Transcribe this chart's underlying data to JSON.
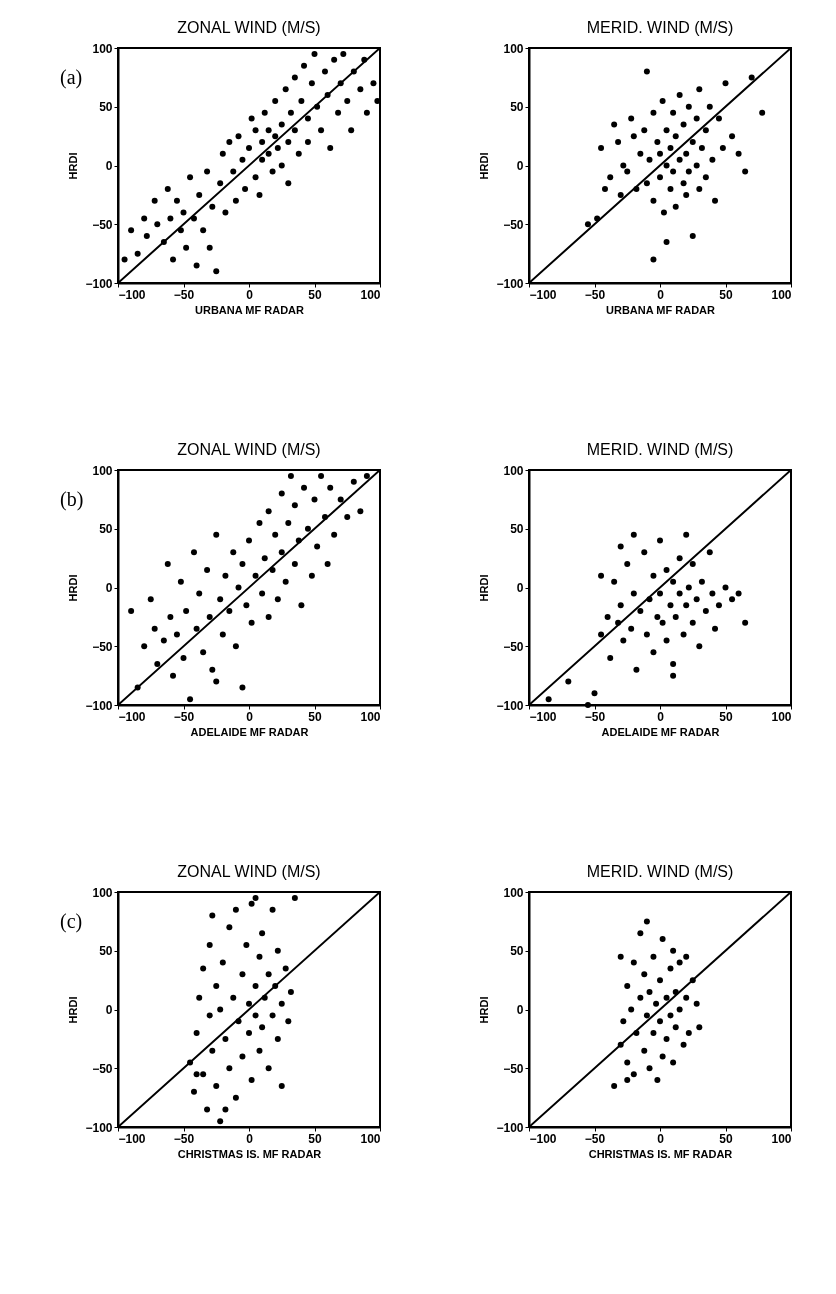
{
  "chart_data": [
    {
      "type": "scatter",
      "title": "ZONAL WIND (M/S)",
      "xlabel": "URBANA MF RADAR",
      "ylabel": "HRDI",
      "annotations": [
        "(a)"
      ],
      "xlim": [
        -100,
        100
      ],
      "ylim": [
        -100,
        100
      ],
      "xticks": [
        -100,
        -50,
        0,
        50,
        100
      ],
      "yticks": [
        -100,
        -50,
        0,
        50,
        100
      ],
      "grid": false,
      "marker": "circle",
      "series": [
        {
          "type": "scatter",
          "color": "#000000",
          "x": [
            -95,
            -90,
            -85,
            -80,
            -78,
            -72,
            -70,
            -65,
            -62,
            -60,
            -58,
            -55,
            -52,
            -50,
            -48,
            -45,
            -42,
            -40,
            -38,
            -35,
            -32,
            -30,
            -28,
            -25,
            -22,
            -20,
            -18,
            -15,
            -12,
            -10,
            -8,
            -5,
            -3,
            0,
            2,
            5,
            5,
            8,
            10,
            10,
            12,
            15,
            15,
            18,
            20,
            20,
            22,
            25,
            25,
            28,
            30,
            30,
            32,
            35,
            35,
            38,
            40,
            42,
            45,
            45,
            48,
            50,
            52,
            55,
            58,
            60,
            62,
            65,
            68,
            70,
            72,
            75,
            78,
            80,
            85,
            88,
            90,
            95,
            98
          ],
          "values": [
            -80,
            -55,
            -75,
            -45,
            -60,
            -30,
            -50,
            -65,
            -20,
            -45,
            -80,
            -30,
            -55,
            -40,
            -70,
            -10,
            -45,
            -85,
            -25,
            -55,
            -5,
            -70,
            -35,
            -90,
            -15,
            10,
            -40,
            20,
            -5,
            -30,
            25,
            5,
            -20,
            15,
            40,
            -10,
            30,
            -25,
            20,
            5,
            45,
            10,
            30,
            -5,
            25,
            55,
            15,
            35,
            0,
            65,
            20,
            -15,
            45,
            75,
            30,
            10,
            55,
            85,
            40,
            20,
            70,
            95,
            50,
            30,
            80,
            60,
            15,
            90,
            45,
            70,
            95,
            55,
            30,
            80,
            65,
            90,
            45,
            70,
            55
          ]
        },
        {
          "type": "line",
          "color": "#000000",
          "marker": "none",
          "x": [
            -100,
            100
          ],
          "values": [
            -100,
            100
          ]
        }
      ]
    },
    {
      "type": "scatter",
      "title": "MERID. WIND (M/S)",
      "xlabel": "URBANA MF RADAR",
      "ylabel": "HRDI",
      "xlim": [
        -100,
        100
      ],
      "ylim": [
        -100,
        100
      ],
      "xticks": [
        -100,
        -50,
        0,
        50,
        100
      ],
      "yticks": [
        -100,
        -50,
        0,
        50,
        100
      ],
      "grid": false,
      "marker": "circle",
      "series": [
        {
          "type": "scatter",
          "color": "#000000",
          "x": [
            -55,
            -48,
            -45,
            -42,
            -38,
            -35,
            -32,
            -30,
            -28,
            -25,
            -22,
            -20,
            -18,
            -15,
            -12,
            -10,
            -8,
            -5,
            -5,
            -2,
            0,
            0,
            2,
            3,
            5,
            5,
            8,
            8,
            10,
            10,
            12,
            12,
            15,
            15,
            18,
            18,
            20,
            20,
            22,
            22,
            25,
            25,
            28,
            28,
            30,
            30,
            32,
            35,
            35,
            38,
            40,
            42,
            45,
            48,
            50,
            55,
            60,
            65,
            70,
            78,
            -5,
            -10,
            5
          ],
          "values": [
            -50,
            -45,
            15,
            -20,
            -10,
            35,
            20,
            -25,
            0,
            -5,
            40,
            25,
            -20,
            10,
            30,
            -15,
            5,
            45,
            -30,
            20,
            -10,
            10,
            55,
            -40,
            30,
            0,
            -20,
            15,
            45,
            -5,
            25,
            -35,
            5,
            60,
            -15,
            35,
            10,
            -25,
            50,
            -5,
            20,
            -60,
            0,
            40,
            -20,
            65,
            15,
            30,
            -10,
            50,
            5,
            -30,
            40,
            15,
            70,
            25,
            10,
            -5,
            75,
            45,
            -80,
            80,
            -65
          ]
        },
        {
          "type": "line",
          "color": "#000000",
          "marker": "none",
          "x": [
            -100,
            100
          ],
          "values": [
            -100,
            100
          ]
        }
      ]
    },
    {
      "type": "scatter",
      "title": "ZONAL WIND (M/S)",
      "xlabel": "ADELAIDE MF RADAR",
      "ylabel": "HRDI",
      "annotations": [
        "(b)"
      ],
      "xlim": [
        -100,
        100
      ],
      "ylim": [
        -100,
        100
      ],
      "xticks": [
        -100,
        -50,
        0,
        50,
        100
      ],
      "yticks": [
        -100,
        -50,
        0,
        50,
        100
      ],
      "grid": false,
      "marker": "circle",
      "series": [
        {
          "type": "scatter",
          "color": "#000000",
          "x": [
            -90,
            -85,
            -80,
            -75,
            -72,
            -70,
            -65,
            -62,
            -60,
            -58,
            -55,
            -52,
            -50,
            -48,
            -45,
            -42,
            -40,
            -38,
            -35,
            -32,
            -30,
            -28,
            -25,
            -22,
            -20,
            -18,
            -15,
            -12,
            -10,
            -8,
            -5,
            -2,
            0,
            2,
            5,
            8,
            10,
            12,
            15,
            15,
            18,
            20,
            22,
            25,
            25,
            28,
            30,
            32,
            35,
            35,
            38,
            40,
            42,
            45,
            48,
            50,
            52,
            55,
            58,
            60,
            62,
            65,
            70,
            75,
            80,
            85,
            90,
            -5,
            -25
          ],
          "values": [
            -20,
            -85,
            -50,
            -10,
            -35,
            -65,
            -45,
            20,
            -25,
            -75,
            -40,
            5,
            -60,
            -20,
            -95,
            30,
            -35,
            -5,
            -55,
            15,
            -25,
            -70,
            45,
            -10,
            -40,
            10,
            -20,
            30,
            -50,
            0,
            20,
            -15,
            40,
            -30,
            10,
            55,
            -5,
            25,
            -25,
            65,
            15,
            45,
            -10,
            80,
            30,
            5,
            55,
            95,
            20,
            70,
            40,
            -15,
            85,
            50,
            10,
            75,
            35,
            95,
            60,
            20,
            85,
            45,
            75,
            60,
            90,
            65,
            95,
            -85,
            -80
          ]
        },
        {
          "type": "line",
          "color": "#000000",
          "marker": "none",
          "x": [
            -100,
            100
          ],
          "values": [
            -100,
            100
          ]
        }
      ]
    },
    {
      "type": "scatter",
      "title": "MERID. WIND (M/S)",
      "xlabel": "ADELAIDE MF RADAR",
      "ylabel": "HRDI",
      "xlim": [
        -100,
        100
      ],
      "ylim": [
        -100,
        100
      ],
      "xticks": [
        -100,
        -50,
        0,
        50,
        100
      ],
      "yticks": [
        -100,
        -50,
        0,
        50,
        100
      ],
      "grid": false,
      "marker": "circle",
      "series": [
        {
          "type": "scatter",
          "color": "#000000",
          "x": [
            -85,
            -70,
            -55,
            -50,
            -45,
            -40,
            -38,
            -35,
            -32,
            -30,
            -28,
            -25,
            -22,
            -20,
            -18,
            -15,
            -12,
            -10,
            -8,
            -5,
            -5,
            -2,
            0,
            0,
            2,
            5,
            5,
            8,
            10,
            10,
            12,
            15,
            15,
            18,
            20,
            20,
            22,
            25,
            25,
            28,
            30,
            32,
            35,
            38,
            40,
            42,
            45,
            50,
            55,
            60,
            65,
            -30,
            -20,
            -45,
            10
          ],
          "values": [
            -95,
            -80,
            -100,
            -90,
            -40,
            -25,
            -60,
            5,
            -30,
            -15,
            -45,
            20,
            -35,
            -5,
            -70,
            -20,
            30,
            -40,
            -10,
            10,
            -55,
            -25,
            -5,
            40,
            -30,
            15,
            -45,
            -15,
            5,
            -65,
            -25,
            25,
            -5,
            -40,
            -15,
            45,
            0,
            -30,
            20,
            -10,
            -50,
            5,
            -20,
            30,
            -5,
            -35,
            -15,
            0,
            -10,
            -5,
            -30,
            35,
            45,
            10,
            -75
          ]
        },
        {
          "type": "line",
          "color": "#000000",
          "marker": "none",
          "x": [
            -100,
            100
          ],
          "values": [
            -100,
            100
          ]
        }
      ]
    },
    {
      "type": "scatter",
      "title": "ZONAL WIND (M/S)",
      "xlabel": "CHRISTMAS IS. MF RADAR",
      "ylabel": "HRDI",
      "annotations": [
        "(c)"
      ],
      "xlim": [
        -100,
        100
      ],
      "ylim": [
        -100,
        100
      ],
      "xticks": [
        -100,
        -50,
        0,
        50,
        100
      ],
      "yticks": [
        -100,
        -50,
        0,
        50,
        100
      ],
      "grid": false,
      "marker": "circle",
      "series": [
        {
          "type": "scatter",
          "color": "#000000",
          "x": [
            -45,
            -42,
            -40,
            -38,
            -35,
            -35,
            -32,
            -30,
            -30,
            -28,
            -25,
            -25,
            -22,
            -22,
            -20,
            -18,
            -15,
            -15,
            -12,
            -10,
            -10,
            -8,
            -5,
            -5,
            -2,
            0,
            0,
            2,
            2,
            5,
            5,
            8,
            8,
            10,
            10,
            12,
            15,
            15,
            18,
            18,
            20,
            22,
            22,
            25,
            25,
            28,
            30,
            32,
            35,
            -40,
            -28,
            -18,
            5
          ],
          "values": [
            -45,
            -70,
            -20,
            10,
            -55,
            35,
            -85,
            -5,
            55,
            -35,
            20,
            -65,
            0,
            -95,
            40,
            -25,
            70,
            -50,
            10,
            -75,
            85,
            -10,
            30,
            -40,
            55,
            -20,
            5,
            90,
            -60,
            20,
            -5,
            45,
            -35,
            -15,
            65,
            10,
            -50,
            30,
            -5,
            85,
            20,
            -25,
            50,
            5,
            -65,
            35,
            -10,
            15,
            95,
            -55,
            80,
            -85,
            95
          ]
        },
        {
          "type": "line",
          "color": "#000000",
          "marker": "none",
          "x": [
            -100,
            100
          ],
          "values": [
            -100,
            100
          ]
        }
      ]
    },
    {
      "type": "scatter",
      "title": "MERID. WIND (M/S)",
      "xlabel": "CHRISTMAS IS. MF RADAR",
      "ylabel": "HRDI",
      "xlim": [
        -100,
        100
      ],
      "ylim": [
        -100,
        100
      ],
      "xticks": [
        -100,
        -50,
        0,
        50,
        100
      ],
      "yticks": [
        -100,
        -50,
        0,
        50,
        100
      ],
      "grid": false,
      "marker": "circle",
      "series": [
        {
          "type": "scatter",
          "color": "#000000",
          "x": [
            -35,
            -30,
            -28,
            -25,
            -25,
            -22,
            -20,
            -20,
            -18,
            -15,
            -15,
            -12,
            -12,
            -10,
            -10,
            -8,
            -8,
            -5,
            -5,
            -3,
            -2,
            0,
            0,
            2,
            2,
            5,
            5,
            8,
            8,
            10,
            10,
            12,
            12,
            15,
            15,
            18,
            20,
            22,
            25,
            28,
            30,
            -30,
            20,
            -25
          ],
          "values": [
            -65,
            -30,
            -10,
            -45,
            20,
            0,
            -55,
            40,
            -20,
            10,
            65,
            -35,
            30,
            -5,
            75,
            15,
            -50,
            45,
            -20,
            5,
            -60,
            25,
            -10,
            60,
            -40,
            10,
            -25,
            35,
            -5,
            50,
            -45,
            15,
            -15,
            40,
            0,
            -30,
            10,
            -20,
            25,
            5,
            -15,
            45,
            45,
            -60
          ]
        },
        {
          "type": "line",
          "color": "#000000",
          "marker": "none",
          "x": [
            -100,
            100
          ],
          "values": [
            -100,
            100
          ]
        }
      ]
    }
  ]
}
